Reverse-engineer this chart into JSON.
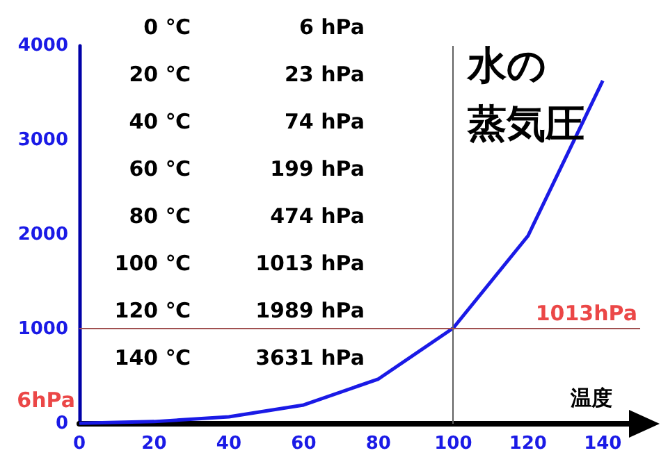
{
  "chart_data": {
    "type": "line",
    "title": "水の",
    "subtitle": "蒸気圧",
    "xlabel": "温度",
    "x": [
      0,
      20,
      40,
      60,
      80,
      100,
      120,
      140
    ],
    "series": [
      {
        "color": "#1a1ae6",
        "values": [
          6,
          23,
          74,
          199,
          474,
          1013,
          1989,
          3631
        ]
      }
    ],
    "xlim": [
      0,
      150
    ],
    "xticks": [
      0,
      20,
      40,
      60,
      80,
      100,
      120,
      140
    ],
    "ylim": [
      0,
      4000
    ],
    "yticks": [
      0,
      1000,
      2000,
      3000,
      4000
    ],
    "grid": false,
    "marker": "none",
    "line_style": "solid",
    "ref_lines": [
      {
        "axis": "x",
        "value": 100,
        "color": "#606060"
      },
      {
        "axis": "y",
        "value": 1013,
        "color": "#a05050"
      }
    ],
    "annotations": [
      "0 ℃",
      "6 hPa",
      "20 ℃",
      "23 hPa",
      "40 ℃",
      "74 hPa",
      "60 ℃",
      "199 hPa",
      "80 ℃",
      "474 hPa",
      "100 ℃",
      "1013 hPa",
      "120 ℃",
      "1989 hPa",
      "140 ℃",
      "3631 hPa",
      {
        "text": "1013hPa",
        "x": 150,
        "y": 1013
      },
      {
        "text": "6hPa",
        "x": 0,
        "y": 6
      }
    ]
  }
}
